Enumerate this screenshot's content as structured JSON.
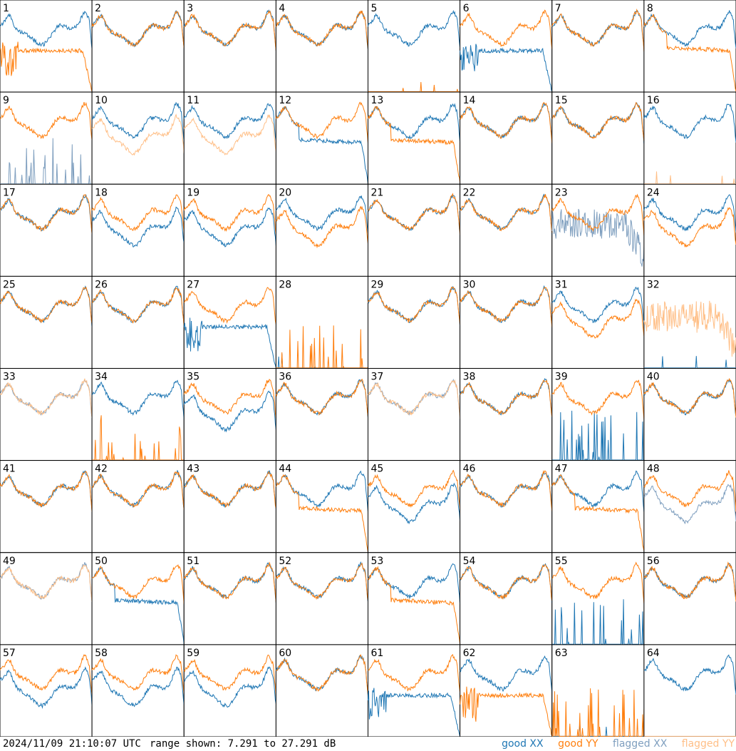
{
  "timestamp": "2024/11/09 21:10:07 UTC",
  "range_text": "range shown: 7.291 to 27.291 dB",
  "legend": [
    {
      "label": "good XX",
      "color": "#1f77b4"
    },
    {
      "label": "good YY",
      "color": "#ff7f0e"
    },
    {
      "label": "flagged XX",
      "color": "#7f9fbf"
    },
    {
      "label": "flagged YY",
      "color": "#ffbf87"
    }
  ],
  "chart_data": {
    "type": "line",
    "layout": "8x8 small multiples",
    "y_units": "dB",
    "ylim": [
      7.291,
      27.291
    ],
    "panels": [
      {
        "id": "1",
        "xx": "good",
        "yy": "good",
        "xx_shape": "normal",
        "yy_shape": "droop_early"
      },
      {
        "id": "2",
        "xx": "good",
        "yy": "good",
        "xx_shape": "normal",
        "yy_shape": "normal"
      },
      {
        "id": "3",
        "xx": "good",
        "yy": "good",
        "xx_shape": "normal",
        "yy_shape": "normal"
      },
      {
        "id": "4",
        "xx": "good",
        "yy": "good",
        "xx_shape": "normal",
        "yy_shape": "normal"
      },
      {
        "id": "5",
        "xx": "good",
        "yy": "good",
        "xx_shape": "normal",
        "yy_shape": "flat_zero"
      },
      {
        "id": "6",
        "xx": "good",
        "yy": "good",
        "xx_shape": "droop_early",
        "yy_shape": "normal"
      },
      {
        "id": "7",
        "xx": "good",
        "yy": "good",
        "xx_shape": "normal",
        "yy_shape": "normal"
      },
      {
        "id": "8",
        "xx": "good",
        "yy": "good",
        "xx_shape": "normal",
        "yy_shape": "droop"
      },
      {
        "id": "9",
        "xx": "flagged",
        "yy": "good",
        "xx_shape": "spikes",
        "yy_shape": "normal"
      },
      {
        "id": "10",
        "xx": "good",
        "yy": "flagged",
        "xx_shape": "normal",
        "yy_shape": "low"
      },
      {
        "id": "11",
        "xx": "good",
        "yy": "flagged",
        "xx_shape": "normal",
        "yy_shape": "low"
      },
      {
        "id": "12",
        "xx": "good",
        "yy": "good",
        "xx_shape": "droop",
        "yy_shape": "normal"
      },
      {
        "id": "13",
        "xx": "good",
        "yy": "good",
        "xx_shape": "normal",
        "yy_shape": "droop"
      },
      {
        "id": "14",
        "xx": "good",
        "yy": "good",
        "xx_shape": "normal",
        "yy_shape": "normal"
      },
      {
        "id": "15",
        "xx": "good",
        "yy": "good",
        "xx_shape": "normal",
        "yy_shape": "normal"
      },
      {
        "id": "16",
        "xx": "good",
        "yy": "flagged",
        "xx_shape": "normal",
        "yy_shape": "flat_zero"
      },
      {
        "id": "17",
        "xx": "good",
        "yy": "good",
        "xx_shape": "normal",
        "yy_shape": "normal"
      },
      {
        "id": "18",
        "xx": "good",
        "yy": "good",
        "xx_shape": "low",
        "yy_shape": "normal"
      },
      {
        "id": "19",
        "xx": "good",
        "yy": "good",
        "xx_shape": "low",
        "yy_shape": "normal"
      },
      {
        "id": "20",
        "xx": "good",
        "yy": "good",
        "xx_shape": "normal",
        "yy_shape": "low"
      },
      {
        "id": "21",
        "xx": "good",
        "yy": "good",
        "xx_shape": "normal",
        "yy_shape": "normal"
      },
      {
        "id": "22",
        "xx": "good",
        "yy": "good",
        "xx_shape": "normal",
        "yy_shape": "normal"
      },
      {
        "id": "23",
        "xx": "flagged",
        "yy": "good",
        "xx_shape": "noisy",
        "yy_shape": "normal"
      },
      {
        "id": "24",
        "xx": "good",
        "yy": "good",
        "xx_shape": "normal",
        "yy_shape": "low"
      },
      {
        "id": "25",
        "xx": "good",
        "yy": "good",
        "xx_shape": "normal",
        "yy_shape": "normal"
      },
      {
        "id": "26",
        "xx": "good",
        "yy": "good",
        "xx_shape": "normal",
        "yy_shape": "normal"
      },
      {
        "id": "27",
        "xx": "good",
        "yy": "good",
        "xx_shape": "droop_early",
        "yy_shape": "normal"
      },
      {
        "id": "28",
        "xx": "good",
        "yy": "good",
        "xx_shape": "flat_zero",
        "yy_shape": "spikes"
      },
      {
        "id": "29",
        "xx": "good",
        "yy": "good",
        "xx_shape": "normal",
        "yy_shape": "normal"
      },
      {
        "id": "30",
        "xx": "good",
        "yy": "good",
        "xx_shape": "normal",
        "yy_shape": "normal"
      },
      {
        "id": "31",
        "xx": "good",
        "yy": "good",
        "xx_shape": "normal",
        "yy_shape": "low"
      },
      {
        "id": "32",
        "xx": "good",
        "yy": "flagged",
        "xx_shape": "flat_zero",
        "yy_shape": "noisy"
      },
      {
        "id": "33",
        "xx": "flagged",
        "yy": "flagged",
        "xx_shape": "normal",
        "yy_shape": "normal"
      },
      {
        "id": "34",
        "xx": "good",
        "yy": "good",
        "xx_shape": "normal",
        "yy_shape": "spikes"
      },
      {
        "id": "35",
        "xx": "good",
        "yy": "good",
        "xx_shape": "low",
        "yy_shape": "normal"
      },
      {
        "id": "36",
        "xx": "good",
        "yy": "good",
        "xx_shape": "normal",
        "yy_shape": "normal"
      },
      {
        "id": "37",
        "xx": "flagged",
        "yy": "flagged",
        "xx_shape": "normal",
        "yy_shape": "normal"
      },
      {
        "id": "38",
        "xx": "good",
        "yy": "good",
        "xx_shape": "normal",
        "yy_shape": "normal"
      },
      {
        "id": "39",
        "xx": "good",
        "yy": "good",
        "xx_shape": "spikes",
        "yy_shape": "normal"
      },
      {
        "id": "40",
        "xx": "good",
        "yy": "good",
        "xx_shape": "normal",
        "yy_shape": "normal"
      },
      {
        "id": "41",
        "xx": "good",
        "yy": "good",
        "xx_shape": "normal",
        "yy_shape": "normal"
      },
      {
        "id": "42",
        "xx": "good",
        "yy": "good",
        "xx_shape": "normal",
        "yy_shape": "normal"
      },
      {
        "id": "43",
        "xx": "good",
        "yy": "good",
        "xx_shape": "normal",
        "yy_shape": "normal"
      },
      {
        "id": "44",
        "xx": "good",
        "yy": "good",
        "xx_shape": "normal",
        "yy_shape": "droop"
      },
      {
        "id": "45",
        "xx": "good",
        "yy": "good",
        "xx_shape": "low",
        "yy_shape": "normal"
      },
      {
        "id": "46",
        "xx": "good",
        "yy": "good",
        "xx_shape": "normal",
        "yy_shape": "normal"
      },
      {
        "id": "47",
        "xx": "good",
        "yy": "good",
        "xx_shape": "normal",
        "yy_shape": "droop"
      },
      {
        "id": "48",
        "xx": "flagged",
        "yy": "good",
        "xx_shape": "low",
        "yy_shape": "normal"
      },
      {
        "id": "49",
        "xx": "flagged",
        "yy": "flagged",
        "xx_shape": "normal",
        "yy_shape": "normal"
      },
      {
        "id": "50",
        "xx": "good",
        "yy": "good",
        "xx_shape": "droop",
        "yy_shape": "normal"
      },
      {
        "id": "51",
        "xx": "good",
        "yy": "good",
        "xx_shape": "normal",
        "yy_shape": "normal"
      },
      {
        "id": "52",
        "xx": "good",
        "yy": "good",
        "xx_shape": "normal",
        "yy_shape": "normal"
      },
      {
        "id": "53",
        "xx": "good",
        "yy": "good",
        "xx_shape": "normal",
        "yy_shape": "droop"
      },
      {
        "id": "54",
        "xx": "good",
        "yy": "good",
        "xx_shape": "normal",
        "yy_shape": "normal"
      },
      {
        "id": "55",
        "xx": "good",
        "yy": "good",
        "xx_shape": "spikes",
        "yy_shape": "normal"
      },
      {
        "id": "56",
        "xx": "good",
        "yy": "good",
        "xx_shape": "normal",
        "yy_shape": "normal"
      },
      {
        "id": "57",
        "xx": "good",
        "yy": "good",
        "xx_shape": "low",
        "yy_shape": "normal"
      },
      {
        "id": "58",
        "xx": "good",
        "yy": "good",
        "xx_shape": "low",
        "yy_shape": "normal"
      },
      {
        "id": "59",
        "xx": "good",
        "yy": "good",
        "xx_shape": "low",
        "yy_shape": "normal"
      },
      {
        "id": "60",
        "xx": "good",
        "yy": "good",
        "xx_shape": "normal",
        "yy_shape": "normal"
      },
      {
        "id": "61",
        "xx": "good",
        "yy": "good",
        "xx_shape": "droop_early",
        "yy_shape": "normal"
      },
      {
        "id": "62",
        "xx": "good",
        "yy": "good",
        "xx_shape": "normal",
        "yy_shape": "droop_early"
      },
      {
        "id": "63",
        "xx": "good",
        "yy": "good",
        "xx_shape": "flat_zero",
        "yy_shape": "spikes"
      },
      {
        "id": "64",
        "xx": "good",
        "yy": "flagged",
        "xx_shape": "normal",
        "yy_shape": "flat_zero"
      }
    ]
  }
}
